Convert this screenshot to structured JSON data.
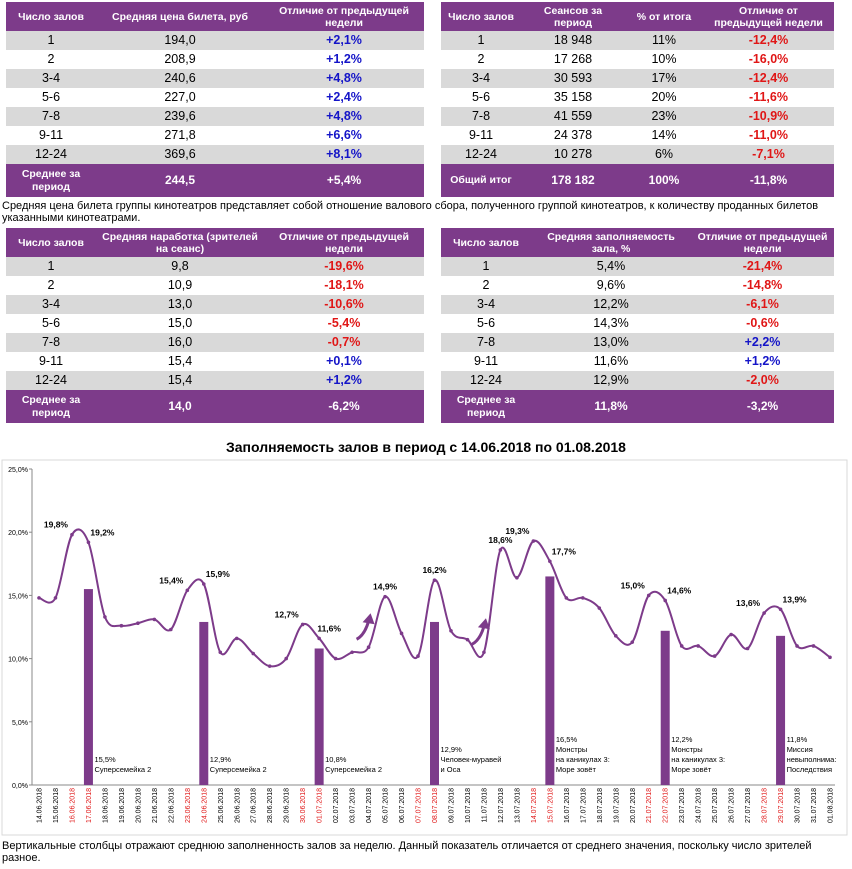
{
  "table1": {
    "headers": [
      "Число залов",
      "Средняя цена билета, руб",
      "Отличие от предыдущей недели"
    ],
    "rows": [
      [
        "1",
        "194,0",
        "+2,1%"
      ],
      [
        "2",
        "208,9",
        "+1,2%"
      ],
      [
        "3-4",
        "240,6",
        "+4,8%"
      ],
      [
        "5-6",
        "227,0",
        "+2,4%"
      ],
      [
        "7-8",
        "239,6",
        "+4,8%"
      ],
      [
        "9-11",
        "271,8",
        "+6,6%"
      ],
      [
        "12-24",
        "369,6",
        "+8,1%"
      ]
    ],
    "total": [
      "Среднее за период",
      "244,5",
      "+5,4%"
    ]
  },
  "table2": {
    "headers": [
      "Число залов",
      "Сеансов за период",
      "% от итога",
      "Отличие от предыдущей недели"
    ],
    "rows": [
      [
        "1",
        "18 948",
        "11%",
        "-12,4%"
      ],
      [
        "2",
        "17 268",
        "10%",
        "-16,0%"
      ],
      [
        "3-4",
        "30 593",
        "17%",
        "-12,4%"
      ],
      [
        "5-6",
        "35 158",
        "20%",
        "-11,6%"
      ],
      [
        "7-8",
        "41 559",
        "23%",
        "-10,9%"
      ],
      [
        "9-11",
        "24 378",
        "14%",
        "-11,0%"
      ],
      [
        "12-24",
        "10 278",
        "6%",
        "-7,1%"
      ]
    ],
    "total": [
      "Общий итог",
      "178 182",
      "100%",
      "-11,8%"
    ]
  },
  "note_price": "Средняя цена билета группы кинотеатров представляет собой отношение валового сбора, полученного группой кинотеатров, к количеству проданных билетов указанными кинотеатрами.",
  "table3": {
    "headers": [
      "Число залов",
      "Средняя наработка (зрителей на сеанс)",
      "Отличие от предыдущей недели"
    ],
    "rows": [
      [
        "1",
        "9,8",
        "-19,6%"
      ],
      [
        "2",
        "10,9",
        "-18,1%"
      ],
      [
        "3-4",
        "13,0",
        "-10,6%"
      ],
      [
        "5-6",
        "15,0",
        "-5,4%"
      ],
      [
        "7-8",
        "16,0",
        "-0,7%"
      ],
      [
        "9-11",
        "15,4",
        "+0,1%"
      ],
      [
        "12-24",
        "15,4",
        "+1,2%"
      ]
    ],
    "total": [
      "Среднее за период",
      "14,0",
      "-6,2%"
    ]
  },
  "table4": {
    "headers": [
      "Число залов",
      "Средняя заполняемость зала, %",
      "Отличие от предыдущей недели"
    ],
    "rows": [
      [
        "1",
        "5,4%",
        "-21,4%"
      ],
      [
        "2",
        "9,6%",
        "-14,8%"
      ],
      [
        "3-4",
        "12,2%",
        "-6,1%"
      ],
      [
        "5-6",
        "14,3%",
        "-0,6%"
      ],
      [
        "7-8",
        "13,0%",
        "+2,2%"
      ],
      [
        "9-11",
        "11,6%",
        "+1,2%"
      ],
      [
        "12-24",
        "12,9%",
        "-2,0%"
      ]
    ],
    "total": [
      "Среднее за период",
      "11,8%",
      "-3,2%"
    ]
  },
  "chart_data": {
    "type": "line",
    "title": "Заполняемость залов в период с 14.06.2018 по 01.08.2018",
    "ylim": [
      0,
      25
    ],
    "yticks": [
      "0,0%",
      "5,0%",
      "10,0%",
      "15,0%",
      "20,0%",
      "25,0%"
    ],
    "categories": [
      "14.06.2018",
      "15.06.2018",
      "16.06.2018",
      "17.06.2018",
      "18.06.2018",
      "19.06.2018",
      "20.06.2018",
      "21.06.2018",
      "22.06.2018",
      "23.06.2018",
      "24.06.2018",
      "25.06.2018",
      "26.06.2018",
      "27.06.2018",
      "28.06.2018",
      "29.06.2018",
      "30.06.2018",
      "01.07.2018",
      "02.07.2018",
      "03.07.2018",
      "04.07.2018",
      "05.07.2018",
      "06.07.2018",
      "07.07.2018",
      "08.07.2018",
      "09.07.2018",
      "10.07.2018",
      "11.07.2018",
      "12.07.2018",
      "13.07.2018",
      "14.07.2018",
      "15.07.2018",
      "16.07.2018",
      "17.07.2018",
      "18.07.2018",
      "19.07.2018",
      "20.07.2018",
      "21.07.2018",
      "22.07.2018",
      "23.07.2018",
      "24.07.2018",
      "25.07.2018",
      "26.07.2018",
      "27.07.2018",
      "28.07.2018",
      "29.07.2018",
      "30.07.2018",
      "31.07.2018",
      "01.08.2018"
    ],
    "weekend_indices": [
      2,
      3,
      9,
      10,
      16,
      17,
      23,
      24,
      30,
      31,
      37,
      38,
      44,
      45
    ],
    "series": [
      {
        "name": "Заполняемость по дням",
        "values": [
          14.8,
          14.8,
          19.8,
          19.2,
          13.3,
          12.6,
          12.8,
          13.1,
          12.3,
          15.4,
          15.9,
          10.5,
          11.6,
          10.4,
          9.4,
          10.0,
          12.7,
          11.6,
          10.0,
          10.5,
          10.9,
          14.9,
          12.0,
          10.2,
          16.2,
          12.2,
          11.5,
          10.5,
          18.6,
          16.4,
          19.3,
          17.7,
          14.8,
          14.8,
          14.0,
          11.8,
          11.3,
          15.0,
          14.6,
          11.0,
          11.0,
          10.2,
          11.9,
          10.8,
          13.6,
          13.9,
          11.0,
          11.0,
          10.1
        ]
      }
    ],
    "point_labels": [
      {
        "index": 2,
        "text": "19,8%"
      },
      {
        "index": 3,
        "text": "19,2%"
      },
      {
        "index": 9,
        "text": "15,4%"
      },
      {
        "index": 10,
        "text": "15,9%"
      },
      {
        "index": 16,
        "text": "12,7%"
      },
      {
        "index": 17,
        "text": "11,6%"
      },
      {
        "index": 21,
        "text": "14,9%"
      },
      {
        "index": 24,
        "text": "16,2%"
      },
      {
        "index": 28,
        "text": "18,6%"
      },
      {
        "index": 30,
        "text": "19,3%"
      },
      {
        "index": 31,
        "text": "17,7%"
      },
      {
        "index": 37,
        "text": "15,0%"
      },
      {
        "index": 38,
        "text": "14,6%"
      },
      {
        "index": 44,
        "text": "13,6%"
      },
      {
        "index": 45,
        "text": "13,9%"
      }
    ],
    "bars": [
      {
        "index": 3,
        "value": 15.5,
        "label": "15,5%",
        "film": [
          "Суперсемейка 2"
        ]
      },
      {
        "index": 10,
        "value": 12.9,
        "label": "12,9%",
        "film": [
          "Суперсемейка 2"
        ]
      },
      {
        "index": 17,
        "value": 10.8,
        "label": "10,8%",
        "film": [
          "Суперсемейка 2"
        ]
      },
      {
        "index": 24,
        "value": 12.9,
        "label": "12,9%",
        "film": [
          "Человек-муравей",
          "и Оса"
        ]
      },
      {
        "index": 31,
        "value": 16.5,
        "label": "16,5%",
        "film": [
          "Монстры",
          "на каникулах 3:",
          "Море зовёт"
        ]
      },
      {
        "index": 38,
        "value": 12.2,
        "label": "12,2%",
        "film": [
          "Монстры",
          "на каникулах 3:",
          "Море зовёт"
        ]
      },
      {
        "index": 45,
        "value": 11.8,
        "label": "11,8%",
        "film": [
          "Миссия",
          "невыполнима:",
          "Последствия"
        ]
      }
    ],
    "arrows_after_index": [
      20,
      27
    ]
  },
  "note_bottom": "Вертикальные столбцы отражают среднюю заполненность залов за неделю. Данный показатель отличается от среднего значения, поскольку число зрителей разное.",
  "colors": {
    "purple": "#7d3b8a",
    "line": "#7d3b8a",
    "positive": "#1414c8",
    "negative": "#e01616",
    "weekend": "#e01616",
    "alt_row": "#d9d9d9"
  }
}
